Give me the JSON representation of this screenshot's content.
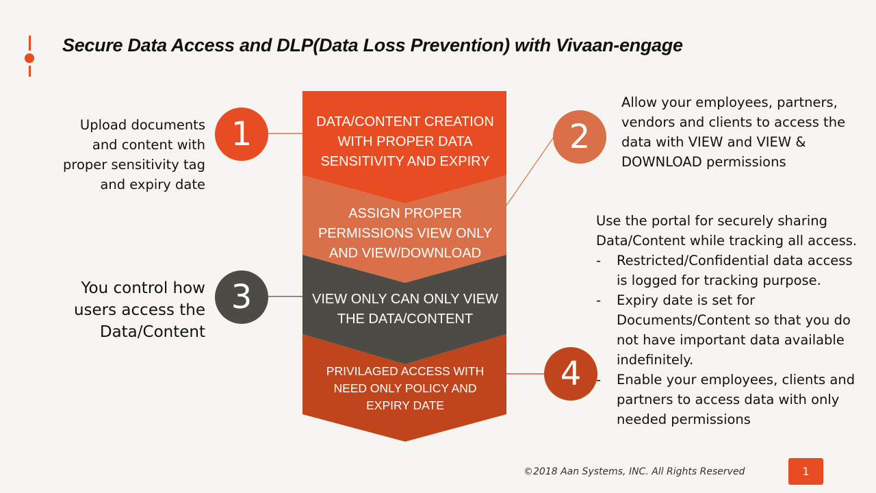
{
  "title": "Secure Data Access and DLP(Data Loss Prevention) with Vivaan-engage",
  "stages": [
    {
      "label": "DATA/CONTENT CREATION WITH PROPER DATA SENSITIVITY  AND EXPIRY",
      "color": "#e84c22"
    },
    {
      "label": "ASSIGN PROPER PERMISSIONS VIEW ONLY AND VIEW/DOWNLOAD",
      "color": "#d9704a"
    },
    {
      "label": "VIEW ONLY CAN ONLY VIEW THE DATA/CONTENT",
      "color": "#4d4b45"
    },
    {
      "label": "PRIVILAGED ACCESS WITH NEED ONLY POLICY AND EXPIRY DATE",
      "color": "#c0441c"
    }
  ],
  "steps": [
    {
      "number": "1",
      "color": "#e84c22",
      "text": "Upload documents and content with proper sensitivity tag and expiry date"
    },
    {
      "number": "2",
      "color": "#d9704a",
      "text": "Allow your employees, partners, vendors and clients to access the data with VIEW and VIEW & DOWNLOAD permissions"
    },
    {
      "number": "3",
      "color": "#4d4b45",
      "text": "You control how users access the Data/Content"
    },
    {
      "number": "4",
      "color": "#c0441c",
      "intro": "Use the portal for securely sharing Data/Content while tracking all access.",
      "bullets": [
        "Restricted/Confidential data access is logged for tracking purpose.",
        "Expiry date is set for Documents/Content so that you do not have important data available indefinitely.",
        "Enable your employees, clients and partners to access data with only needed permissions"
      ]
    }
  ],
  "footer": "©2018 Aan Systems, INC. All Rights Reserved",
  "page_number": "1"
}
